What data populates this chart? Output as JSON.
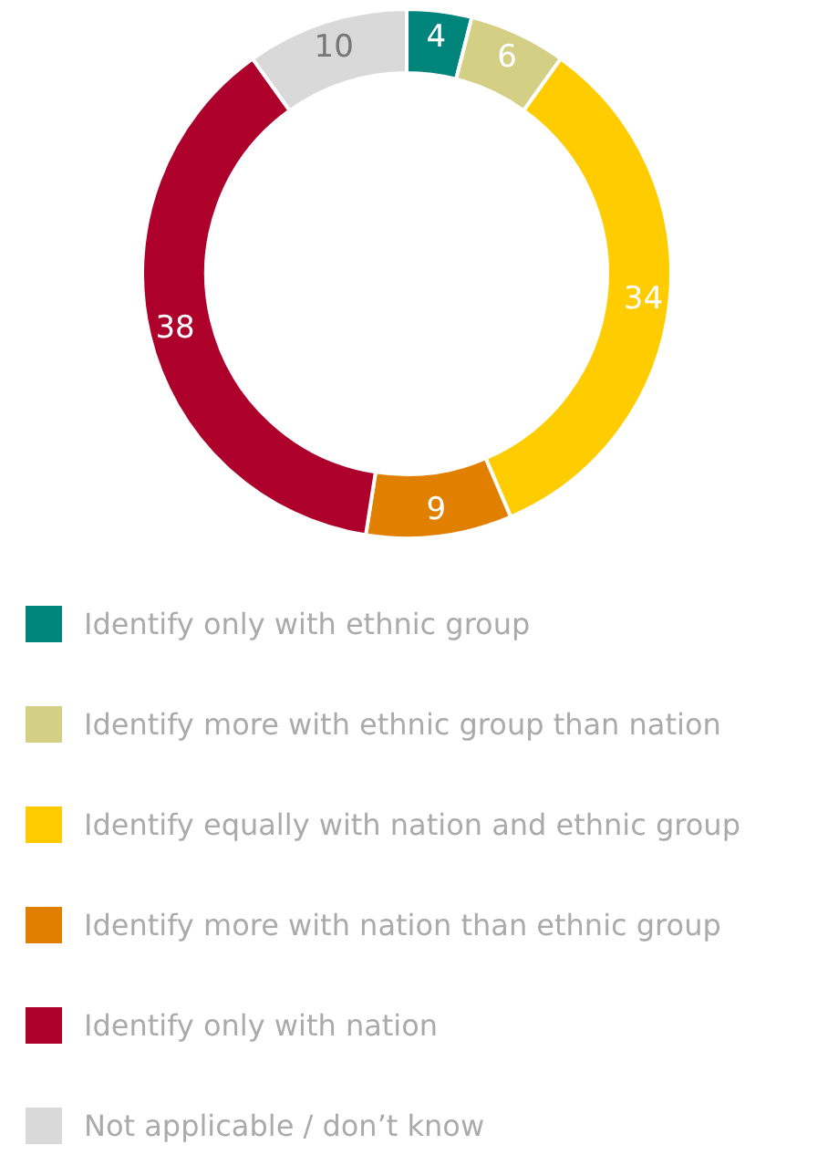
{
  "chart_data": {
    "type": "donut",
    "categories": [
      "Identify only with ethnic group",
      "Identify more with ethnic group than nation",
      "Identify equally with nation and ethnic group",
      "Identify more with nation than ethnic group",
      "Identify only with nation",
      "Not applicable / don’t know"
    ],
    "values": [
      4,
      6,
      34,
      9,
      38,
      10
    ],
    "colors": [
      "#00857c",
      "#d3cf84",
      "#ffcc00",
      "#e07f00",
      "#ad002b",
      "#d9d9d9"
    ],
    "data_labels": true,
    "legend": "bottom"
  }
}
